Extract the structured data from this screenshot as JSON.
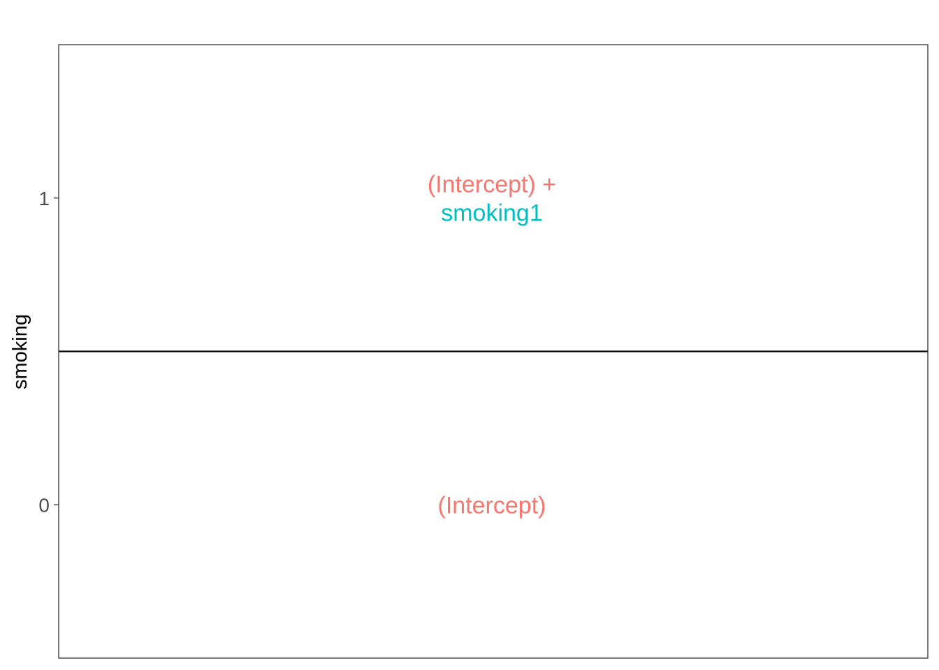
{
  "chart_data": {
    "type": "table",
    "title": "",
    "xlabel": "",
    "ylabel": "smoking",
    "ylim": [
      -0.5,
      1.5
    ],
    "y_ticks": [
      "0",
      "1"
    ],
    "separator_y": 0.5,
    "grid": false,
    "legend": "none",
    "cells": [
      {
        "y": 1,
        "lines": [
          {
            "text": "(Intercept) +",
            "color": "#F8766D"
          },
          {
            "text": "smoking1",
            "color": "#00BFC4"
          }
        ]
      },
      {
        "y": 0,
        "lines": [
          {
            "text": "(Intercept)",
            "color": "#F8766D"
          }
        ]
      }
    ]
  },
  "colors": {
    "intercept": "#F8766D",
    "smoking1": "#00BFC4",
    "panel_border": "#333333",
    "tick_text": "#4d4d4d",
    "separator": "#000000"
  }
}
